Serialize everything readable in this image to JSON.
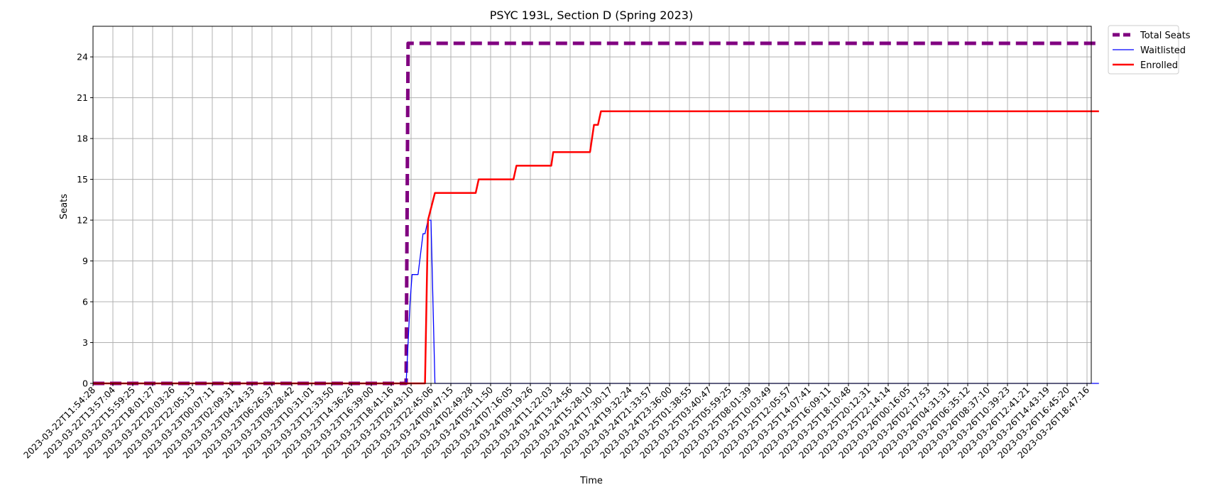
{
  "chart_data": {
    "type": "line",
    "title": "PSYC 193L, Section D (Spring 2023)",
    "xlabel": "Time",
    "ylabel": "Seats",
    "ylim": [
      0,
      26.25
    ],
    "yticks": [
      0,
      3,
      6,
      9,
      12,
      15,
      18,
      21,
      24
    ],
    "grid": true,
    "legend_position": "outside-top-right",
    "categories": [
      "2023-03-22T11:54:28",
      "2023-03-22T13:57:04",
      "2023-03-22T15:59:25",
      "2023-03-22T18:01:27",
      "2023-03-22T20:03:26",
      "2023-03-22T22:05:13",
      "2023-03-23T00:07:11",
      "2023-03-23T02:09:31",
      "2023-03-23T04:24:33",
      "2023-03-23T06:26:37",
      "2023-03-23T08:28:42",
      "2023-03-23T10:31:01",
      "2023-03-23T12:33:50",
      "2023-03-23T14:36:26",
      "2023-03-23T16:39:00",
      "2023-03-23T18:41:16",
      "2023-03-23T20:43:10",
      "2023-03-23T22:45:06",
      "2023-03-24T00:47:15",
      "2023-03-24T02:49:28",
      "2023-03-24T05:11:50",
      "2023-03-24T07:16:05",
      "2023-03-24T09:19:26",
      "2023-03-24T11:22:03",
      "2023-03-24T13:24:56",
      "2023-03-24T15:28:10",
      "2023-03-24T17:30:17",
      "2023-03-24T19:32:24",
      "2023-03-24T21:33:57",
      "2023-03-24T23:36:00",
      "2023-03-25T01:38:55",
      "2023-03-25T03:40:47",
      "2023-03-25T05:59:25",
      "2023-03-25T08:01:39",
      "2023-03-25T10:03:49",
      "2023-03-25T12:05:57",
      "2023-03-25T14:07:41",
      "2023-03-25T16:09:11",
      "2023-03-25T18:10:48",
      "2023-03-25T20:12:31",
      "2023-03-25T22:14:14",
      "2023-03-26T00:16:05",
      "2023-03-26T02:17:53",
      "2023-03-26T04:31:31",
      "2023-03-26T06:35:12",
      "2023-03-26T08:37:10",
      "2023-03-26T10:39:23",
      "2023-03-26T12:41:21",
      "2023-03-26T14:43:19",
      "2023-03-26T16:45:20",
      "2023-03-26T18:47:16"
    ],
    "x_max": 50.6,
    "series": [
      {
        "name": "Total Seats",
        "color": "#800080",
        "style": "dashed",
        "points": [
          [
            0,
            0
          ],
          [
            15.75,
            0
          ],
          [
            15.85,
            25
          ],
          [
            50.6,
            25
          ]
        ]
      },
      {
        "name": "Waitlisted",
        "color": "#0000ff",
        "style": "solid",
        "points": [
          [
            0,
            0
          ],
          [
            15.75,
            0
          ],
          [
            15.95,
            6
          ],
          [
            16.05,
            8
          ],
          [
            16.35,
            8
          ],
          [
            16.6,
            11
          ],
          [
            16.7,
            11
          ],
          [
            16.85,
            12
          ],
          [
            17.0,
            12
          ],
          [
            17.2,
            0
          ],
          [
            50.6,
            0
          ]
        ]
      },
      {
        "name": "Enrolled",
        "color": "#ff0000",
        "style": "solid",
        "points": [
          [
            0,
            0
          ],
          [
            16.7,
            0
          ],
          [
            16.85,
            12
          ],
          [
            17.2,
            14
          ],
          [
            19.25,
            14
          ],
          [
            19.4,
            15
          ],
          [
            21.15,
            15
          ],
          [
            21.3,
            16
          ],
          [
            23.05,
            16
          ],
          [
            23.15,
            17
          ],
          [
            25.0,
            17
          ],
          [
            25.1,
            18
          ],
          [
            25.2,
            19
          ],
          [
            25.4,
            19
          ],
          [
            25.55,
            20
          ],
          [
            50.6,
            20
          ]
        ]
      }
    ]
  }
}
